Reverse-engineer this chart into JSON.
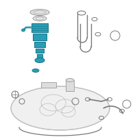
{
  "bg_color": "#ffffff",
  "highlight_color": "#2a9db5",
  "line_color": "#777777",
  "tank_fill": "#f0f0f0",
  "tank_stroke": "#aaaaaa",
  "part_stroke": "#999999",
  "part_fill": "#dddddd"
}
